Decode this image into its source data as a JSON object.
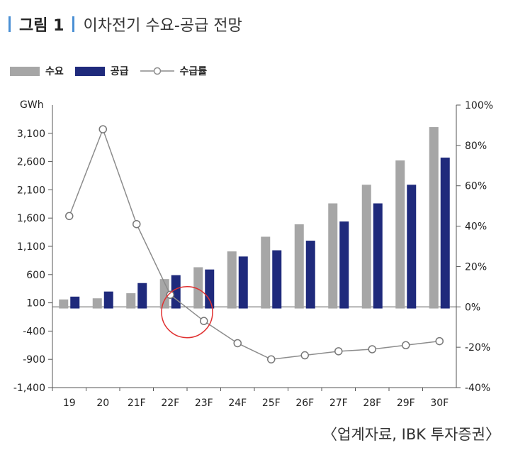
{
  "header": {
    "figure_label": "그림 1",
    "title": "이차전기 수요-공급 전망"
  },
  "legend": {
    "demand": "수요",
    "supply": "공급",
    "ratio": "수급률"
  },
  "source": "〈업계자료, IBK 투자증권〉",
  "colors": {
    "demand": "#a6a6a6",
    "supply": "#1f2a7c",
    "ratio_line": "#8c8c8c",
    "highlight": "#e03030",
    "accent": "#4a8fd4"
  },
  "chart_data": {
    "type": "bar",
    "categories": [
      "19",
      "20",
      "21F",
      "22F",
      "23F",
      "24F",
      "25F",
      "26F",
      "27F",
      "28F",
      "29F",
      "30F"
    ],
    "series": [
      {
        "name": "수요",
        "type": "bar",
        "axis": "left",
        "values": [
          160,
          180,
          270,
          520,
          730,
          1010,
          1270,
          1490,
          1860,
          2190,
          2620,
          3210
        ]
      },
      {
        "name": "공급",
        "type": "bar",
        "axis": "left",
        "values": [
          210,
          300,
          450,
          590,
          690,
          920,
          1030,
          1200,
          1540,
          1860,
          2190,
          2670
        ]
      },
      {
        "name": "수급률",
        "type": "line",
        "axis": "right",
        "values": [
          45,
          88,
          41,
          6,
          -7,
          -18,
          -26,
          -24,
          -22,
          -21,
          -19,
          -17
        ]
      }
    ],
    "left_axis": {
      "label": "GWh",
      "min": -1400,
      "max": 3600,
      "ticks": [
        "3,100",
        "2,600",
        "2,100",
        "1,600",
        "1,100",
        "600",
        "100",
        "-400",
        "-900",
        "-1,400"
      ],
      "tick_values": [
        3100,
        2600,
        2100,
        1600,
        1100,
        600,
        100,
        -400,
        -900,
        -1400
      ]
    },
    "right_axis": {
      "min": -40,
      "max": 100,
      "ticks": [
        "100%",
        "80%",
        "60%",
        "40%",
        "20%",
        "0%",
        "-20%",
        "-40%"
      ],
      "tick_values": [
        100,
        80,
        60,
        40,
        20,
        0,
        -20,
        -40
      ]
    },
    "highlight_category": "23F",
    "grid": false,
    "legend_position": "top-left"
  }
}
